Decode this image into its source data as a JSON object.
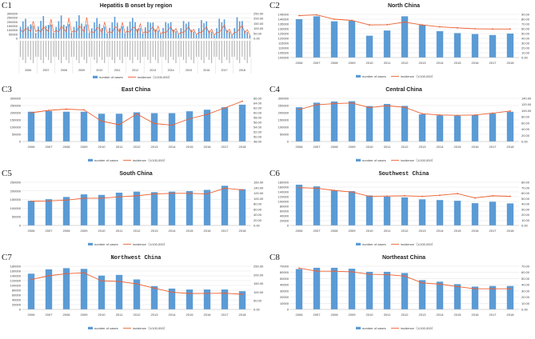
{
  "legend": {
    "bars": "number of cases",
    "line": "incidence（1/100,000）"
  },
  "colors": {
    "bar": "#5b9bd5",
    "line": "#ee6031",
    "grid": "#d9d9d9",
    "text": "#404040"
  },
  "chart_data": [
    {
      "id": "C1",
      "label": "C1",
      "title": "Hepatitis B onset by region",
      "type": "bar+line",
      "grouped_by_year_regions": [
        "North China",
        "East China",
        "Central China",
        "South China",
        "Southwest China",
        "Northwest China",
        "Northeast China"
      ],
      "left_axis": {
        "min": 0,
        "max": 300000,
        "step": 50000
      },
      "right_axis": {
        "min": 0,
        "max": 250,
        "step": 50
      }
    },
    {
      "id": "C2",
      "label": "C2",
      "title": "North China",
      "type": "bar+line",
      "left_axis": {
        "min": 100000,
        "max": 145000,
        "step": 5000
      },
      "right_axis": {
        "min": 0,
        "max": 90,
        "step": 10
      },
      "years": [
        2006,
        2007,
        2008,
        2009,
        2010,
        2011,
        2012,
        2013,
        2014,
        2015,
        2016,
        2017,
        2018
      ],
      "cases": [
        140000,
        143000,
        137800,
        138300,
        122800,
        128200,
        143000,
        134000,
        127500,
        125500,
        124500,
        123500,
        125000
      ],
      "incidence": [
        87.5,
        89,
        80,
        77.5,
        68,
        68.5,
        74,
        68,
        64,
        62,
        60,
        59.5,
        59.5
      ]
    },
    {
      "id": "C3",
      "label": "C3",
      "title": "East China",
      "type": "bar+line",
      "left_axis": {
        "min": 0,
        "max": 300000,
        "step": 50000
      },
      "right_axis": {
        "min": 48,
        "max": 66,
        "step": 2
      },
      "years": [
        2006,
        2007,
        2008,
        2009,
        2010,
        2011,
        2012,
        2013,
        2014,
        2015,
        2016,
        2017,
        2018
      ],
      "cases": [
        207000,
        212000,
        207000,
        207000,
        193000,
        193000,
        203000,
        197000,
        197000,
        210000,
        221000,
        238000,
        256000
      ],
      "incidence": [
        60,
        61,
        61.5,
        61.2,
        56.5,
        55,
        59.5,
        55.5,
        54.8,
        57.5,
        59.3,
        62,
        64.8
      ]
    },
    {
      "id": "C4",
      "label": "C4",
      "title": "Central China",
      "type": "bar+line",
      "left_axis": {
        "min": 0,
        "max": 300000,
        "step": 50000
      },
      "right_axis": {
        "min": 0,
        "max": 140,
        "step": 20
      },
      "years": [
        2006,
        2007,
        2008,
        2009,
        2010,
        2011,
        2012,
        2013,
        2014,
        2015,
        2016,
        2017,
        2018
      ],
      "cases": [
        238000,
        270000,
        278000,
        280000,
        246000,
        261000,
        247000,
        189000,
        182000,
        179000,
        184000,
        194000,
        207000
      ],
      "incidence": [
        104,
        119,
        123,
        125,
        110,
        116,
        111,
        90,
        86,
        85,
        86,
        92,
        99
      ]
    },
    {
      "id": "C5",
      "label": "C5",
      "title": "South China",
      "type": "bar+line",
      "left_axis": {
        "min": 0,
        "max": 250000,
        "step": 50000
      },
      "right_axis": {
        "min": 0,
        "max": 160,
        "step": 20
      },
      "years": [
        2006,
        2007,
        2008,
        2009,
        2010,
        2011,
        2012,
        2013,
        2014,
        2015,
        2016,
        2017,
        2018
      ],
      "cases": [
        143000,
        152000,
        165000,
        180000,
        177000,
        190000,
        196000,
        193000,
        196000,
        199000,
        206000,
        230000,
        210000
      ],
      "incidence": [
        90,
        91,
        94,
        101,
        101,
        106,
        110,
        117,
        119,
        119,
        117,
        138,
        132
      ]
    },
    {
      "id": "C6",
      "label": "C6",
      "title": "Southwest China",
      "type": "bar+line",
      "mono_title": true,
      "left_axis": {
        "min": 0,
        "max": 180000,
        "step": 20000
      },
      "right_axis": {
        "min": 0,
        "max": 80,
        "step": 10
      },
      "years": [
        2006,
        2007,
        2008,
        2009,
        2010,
        2011,
        2012,
        2013,
        2014,
        2015,
        2016,
        2017,
        2018
      ],
      "cases": [
        170000,
        163000,
        146000,
        143000,
        125000,
        120000,
        117000,
        109000,
        106000,
        103000,
        93000,
        99000,
        92000
      ],
      "incidence": [
        70,
        69,
        65,
        62,
        54,
        54.5,
        55,
        54,
        56,
        59,
        51,
        55,
        54
      ]
    },
    {
      "id": "C7",
      "label": "C7",
      "title": "Northwest China",
      "type": "bar+line",
      "mono_title": true,
      "left_axis": {
        "min": 0,
        "max": 180000,
        "step": 20000
      },
      "right_axis": {
        "min": 0,
        "max": 250,
        "step": 50
      },
      "years": [
        2006,
        2007,
        2008,
        2009,
        2010,
        2011,
        2012,
        2013,
        2014,
        2015,
        2016,
        2017,
        2018
      ],
      "cases": [
        149000,
        167000,
        172000,
        169000,
        141000,
        144000,
        125000,
        97000,
        87000,
        83000,
        83000,
        83000,
        76000
      ],
      "incidence": [
        173,
        195,
        207,
        212,
        165,
        162,
        148,
        123,
        100,
        92,
        93,
        94,
        88
      ]
    },
    {
      "id": "C8",
      "label": "C8",
      "title": "Northeast China",
      "type": "bar+line",
      "left_axis": {
        "min": 0,
        "max": 70000,
        "step": 10000
      },
      "right_axis": {
        "min": 0,
        "max": 70,
        "step": 10
      },
      "years": [
        2006,
        2007,
        2008,
        2009,
        2010,
        2011,
        2012,
        2013,
        2014,
        2015,
        2016,
        2017,
        2018
      ],
      "cases": [
        65500,
        67500,
        67500,
        66000,
        61000,
        61000,
        59000,
        47500,
        45000,
        41000,
        37000,
        38000,
        38000
      ],
      "incidence": [
        67,
        62,
        62,
        61,
        57,
        56.5,
        54,
        43,
        41,
        37,
        33.5,
        33.5,
        33.5
      ]
    }
  ]
}
